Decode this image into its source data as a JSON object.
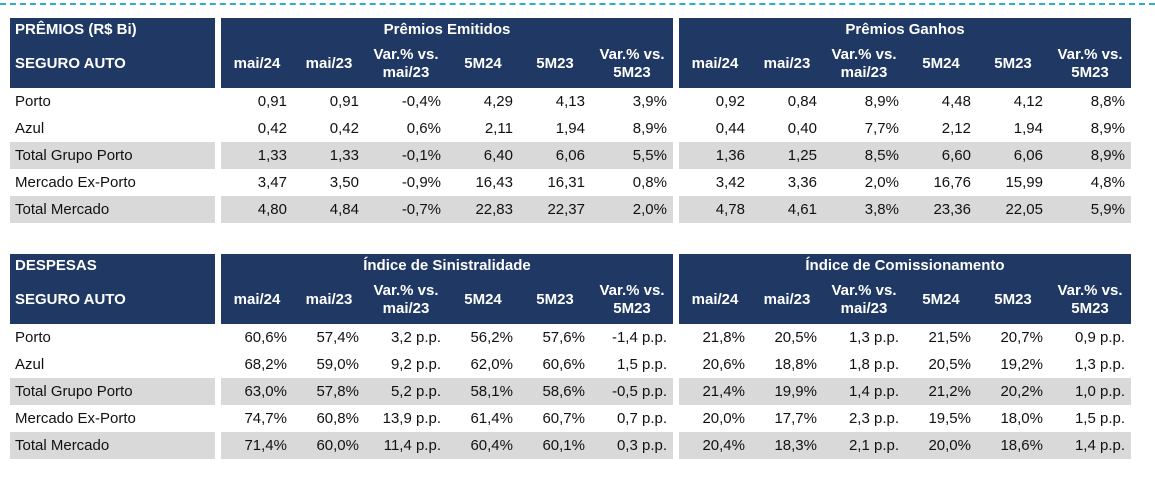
{
  "premios": {
    "corner_top": "PRÊMIOS (R$ Bi)",
    "corner_bottom": "SEGURO AUTO",
    "group_left": "Prêmios Emitidos",
    "group_right": "Prêmios Ganhos",
    "columns": [
      "mai/24",
      "mai/23",
      "Var.% vs. mai/23",
      "5M24",
      "5M23",
      "Var.% vs. 5M23"
    ],
    "rows": [
      {
        "label": "Porto",
        "shaded": false,
        "left": [
          "0,91",
          "0,91",
          "-0,4%",
          "4,29",
          "4,13",
          "3,9%"
        ],
        "right": [
          "0,92",
          "0,84",
          "8,9%",
          "4,48",
          "4,12",
          "8,8%"
        ]
      },
      {
        "label": "Azul",
        "shaded": false,
        "left": [
          "0,42",
          "0,42",
          "0,6%",
          "2,11",
          "1,94",
          "8,9%"
        ],
        "right": [
          "0,44",
          "0,40",
          "7,7%",
          "2,12",
          "1,94",
          "8,9%"
        ]
      },
      {
        "label": "Total Grupo Porto",
        "shaded": true,
        "left": [
          "1,33",
          "1,33",
          "-0,1%",
          "6,40",
          "6,06",
          "5,5%"
        ],
        "right": [
          "1,36",
          "1,25",
          "8,5%",
          "6,60",
          "6,06",
          "8,9%"
        ]
      },
      {
        "label": "Mercado Ex-Porto",
        "shaded": false,
        "left": [
          "3,47",
          "3,50",
          "-0,9%",
          "16,43",
          "16,31",
          "0,8%"
        ],
        "right": [
          "3,42",
          "3,36",
          "2,0%",
          "16,76",
          "15,99",
          "4,8%"
        ]
      },
      {
        "label": "Total Mercado",
        "shaded": true,
        "left": [
          "4,80",
          "4,84",
          "-0,7%",
          "22,83",
          "22,37",
          "2,0%"
        ],
        "right": [
          "4,78",
          "4,61",
          "3,8%",
          "23,36",
          "22,05",
          "5,9%"
        ]
      }
    ]
  },
  "despesas": {
    "corner_top": "DESPESAS",
    "corner_bottom": "SEGURO AUTO",
    "group_left": "Índice de Sinistralidade",
    "group_right": "Índice de Comissionamento",
    "columns": [
      "mai/24",
      "mai/23",
      "Var.% vs. mai/23",
      "5M24",
      "5M23",
      "Var.% vs. 5M23"
    ],
    "rows": [
      {
        "label": "Porto",
        "shaded": false,
        "left": [
          "60,6%",
          "57,4%",
          "3,2 p.p.",
          "56,2%",
          "57,6%",
          "-1,4 p.p."
        ],
        "right": [
          "21,8%",
          "20,5%",
          "1,3 p.p.",
          "21,5%",
          "20,7%",
          "0,9 p.p."
        ]
      },
      {
        "label": "Azul",
        "shaded": false,
        "left": [
          "68,2%",
          "59,0%",
          "9,2 p.p.",
          "62,0%",
          "60,6%",
          "1,5 p.p."
        ],
        "right": [
          "20,6%",
          "18,8%",
          "1,8 p.p.",
          "20,5%",
          "19,2%",
          "1,3 p.p."
        ]
      },
      {
        "label": "Total Grupo Porto",
        "shaded": true,
        "left": [
          "63,0%",
          "57,8%",
          "5,2 p.p.",
          "58,1%",
          "58,6%",
          "-0,5 p.p."
        ],
        "right": [
          "21,4%",
          "19,9%",
          "1,4 p.p.",
          "21,2%",
          "20,2%",
          "1,0 p.p."
        ]
      },
      {
        "label": "Mercado Ex-Porto",
        "shaded": false,
        "left": [
          "74,7%",
          "60,8%",
          "13,9 p.p.",
          "61,4%",
          "60,7%",
          "0,7 p.p."
        ],
        "right": [
          "20,0%",
          "17,7%",
          "2,3 p.p.",
          "19,5%",
          "18,0%",
          "1,5 p.p."
        ]
      },
      {
        "label": "Total Mercado",
        "shaded": true,
        "left": [
          "71,4%",
          "60,0%",
          "11,4 p.p.",
          "60,4%",
          "60,1%",
          "0,3 p.p."
        ],
        "right": [
          "20,4%",
          "18,3%",
          "2,1 p.p.",
          "20,0%",
          "18,6%",
          "1,4 p.p."
        ]
      }
    ]
  }
}
